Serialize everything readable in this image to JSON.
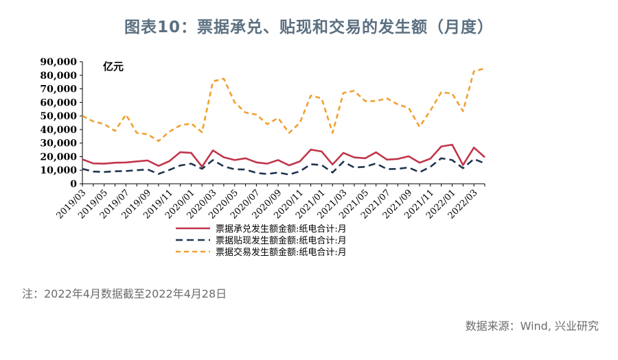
{
  "title": "图表10：票据承兑、贴现和交易的发生额（月度）",
  "note": "注：2022年4月数据截至2022年4月28日",
  "source": "数据来源：Wind, 兴业研究",
  "chart_data": {
    "type": "line",
    "unit_label": "亿元",
    "ylim": [
      0,
      90000
    ],
    "yticks": [
      "0",
      "10,000",
      "20,000",
      "30,000",
      "40,000",
      "50,000",
      "60,000",
      "70,000",
      "80,000",
      "90,000"
    ],
    "x": [
      "2019/03",
      "2019/04",
      "2019/05",
      "2019/06",
      "2019/07",
      "2019/08",
      "2019/09",
      "2019/10",
      "2019/11",
      "2019/12",
      "2020/01",
      "2020/02",
      "2020/03",
      "2020/04",
      "2020/05",
      "2020/06",
      "2020/07",
      "2020/08",
      "2020/09",
      "2020/10",
      "2020/11",
      "2020/12",
      "2021/01",
      "2021/02",
      "2021/03",
      "2021/04",
      "2021/05",
      "2021/06",
      "2021/07",
      "2021/08",
      "2021/09",
      "2021/10",
      "2021/11",
      "2021/12",
      "2022/01",
      "2022/02",
      "2022/03",
      "2022/04"
    ],
    "xtick_labels": [
      "2019/03",
      "2019/05",
      "2019/07",
      "2019/09",
      "2019/11",
      "2020/01",
      "2020/03",
      "2020/05",
      "2020/07",
      "2020/09",
      "2020/11",
      "2021/01",
      "2021/03",
      "2021/05",
      "2021/07",
      "2021/09",
      "2021/11",
      "2022/01",
      "2022/03"
    ],
    "series": [
      {
        "name": "票据承兑发生额金额:纸电合计:月",
        "color": "#c0354a",
        "dash": "solid",
        "values": [
          18000,
          15000,
          14800,
          15500,
          15700,
          16500,
          17200,
          13200,
          16700,
          23300,
          22800,
          12600,
          24600,
          19500,
          17500,
          18800,
          15800,
          14800,
          17500,
          13600,
          16500,
          25200,
          23800,
          14200,
          22800,
          19400,
          18800,
          23200,
          17800,
          18300,
          20300,
          15500,
          18500,
          27500,
          28800,
          13800,
          26700,
          19500
        ]
      },
      {
        "name": "票据贴现发生额金额:纸电合计:月",
        "color": "#1f3550",
        "dash": "dashed",
        "values": [
          11000,
          9000,
          8700,
          9200,
          9400,
          10000,
          10500,
          7300,
          10200,
          13500,
          14800,
          11000,
          17500,
          12800,
          10700,
          10500,
          8000,
          7200,
          8300,
          6800,
          9200,
          14400,
          13800,
          8300,
          16300,
          12000,
          12500,
          15000,
          10800,
          11000,
          12000,
          8500,
          12500,
          18800,
          17500,
          11500,
          18300,
          15000
        ]
      },
      {
        "name": "票据交易发生额金额:纸电合计:月",
        "color": "#f0a030",
        "dash": "dashed",
        "values": [
          50000,
          46000,
          44000,
          39000,
          51000,
          37500,
          36500,
          31500,
          38500,
          43000,
          44500,
          38000,
          75500,
          77500,
          60000,
          52500,
          51000,
          44000,
          48500,
          37500,
          45000,
          65000,
          63000,
          37500,
          67000,
          68500,
          61000,
          61000,
          63000,
          58500,
          56000,
          42000,
          54000,
          67500,
          66500,
          53500,
          83000,
          85000
        ]
      }
    ]
  }
}
